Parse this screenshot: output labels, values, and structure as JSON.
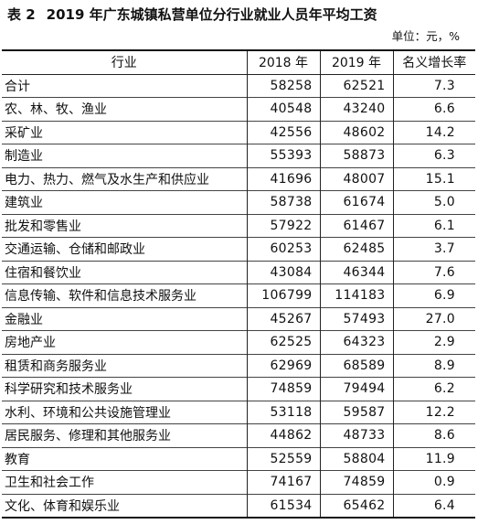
{
  "table_title": {
    "number": "表 2",
    "text": "2019 年广东城镇私营单位分行业就业人员年平均工资"
  },
  "unit_note": "单位：元，%",
  "columns": [
    "行业",
    "2018 年",
    "2019 年",
    "名义增长率"
  ],
  "rows": [
    {
      "industry": "合计",
      "y2018": "58258",
      "y2019": "62521",
      "growth": "7.3"
    },
    {
      "industry": "农、林、牧、渔业",
      "y2018": "40548",
      "y2019": "43240",
      "growth": "6.6"
    },
    {
      "industry": "采矿业",
      "y2018": "42556",
      "y2019": "48602",
      "growth": "14.2"
    },
    {
      "industry": "制造业",
      "y2018": "55393",
      "y2019": "58873",
      "growth": "6.3"
    },
    {
      "industry": "电力、热力、燃气及水生产和供应业",
      "y2018": "41696",
      "y2019": "48007",
      "growth": "15.1"
    },
    {
      "industry": "建筑业",
      "y2018": "58738",
      "y2019": "61674",
      "growth": "5.0"
    },
    {
      "industry": "批发和零售业",
      "y2018": "57922",
      "y2019": "61467",
      "growth": "6.1"
    },
    {
      "industry": "交通运输、仓储和邮政业",
      "y2018": "60253",
      "y2019": "62485",
      "growth": "3.7"
    },
    {
      "industry": "住宿和餐饮业",
      "y2018": "43084",
      "y2019": "46344",
      "growth": "7.6"
    },
    {
      "industry": "信息传输、软件和信息技术服务业",
      "y2018": "106799",
      "y2019": "114183",
      "growth": "6.9"
    },
    {
      "industry": "金融业",
      "y2018": "45267",
      "y2019": "57493",
      "growth": "27.0"
    },
    {
      "industry": "房地产业",
      "y2018": "62525",
      "y2019": "64323",
      "growth": "2.9"
    },
    {
      "industry": "租赁和商务服务业",
      "y2018": "62969",
      "y2019": "68589",
      "growth": "8.9"
    },
    {
      "industry": "科学研究和技术服务业",
      "y2018": "74859",
      "y2019": "79494",
      "growth": "6.2"
    },
    {
      "industry": "水利、环境和公共设施管理业",
      "y2018": "53118",
      "y2019": "59587",
      "growth": "12.2"
    },
    {
      "industry": "居民服务、修理和其他服务业",
      "y2018": "44862",
      "y2019": "48733",
      "growth": "8.6"
    },
    {
      "industry": "教育",
      "y2018": "52559",
      "y2019": "58804",
      "growth": "11.9"
    },
    {
      "industry": "卫生和社会工作",
      "y2018": "74167",
      "y2019": "74859",
      "growth": "0.9"
    },
    {
      "industry": "文化、体育和娱乐业",
      "y2018": "61534",
      "y2019": "65462",
      "growth": "6.4"
    }
  ]
}
